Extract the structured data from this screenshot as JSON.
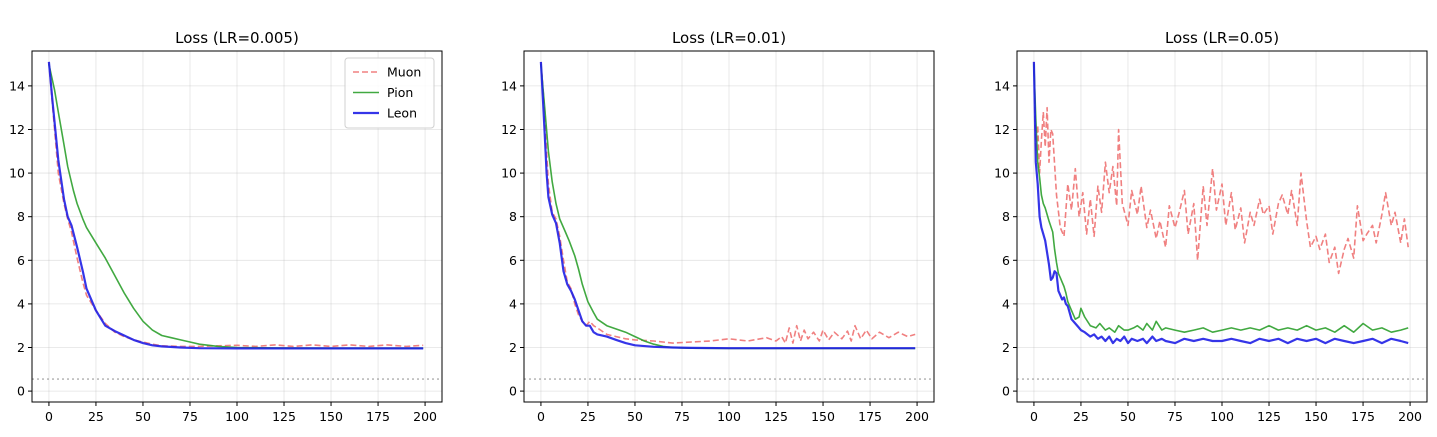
{
  "colors": {
    "muon": "#f08080",
    "pion": "#2ca02c",
    "leon": "#1f1fe6",
    "reference": "#999999"
  },
  "chart_data": [
    {
      "type": "line",
      "title": "Loss (LR=0.005)",
      "xlim": [
        -9,
        209
      ],
      "ylim": [
        -0.5,
        15.6
      ],
      "xticks": [
        0,
        25,
        50,
        75,
        100,
        125,
        150,
        175,
        200
      ],
      "yticks": [
        0,
        2,
        4,
        6,
        8,
        10,
        12,
        14
      ],
      "grid": true,
      "legend": {
        "placement": "top-right",
        "entries": [
          "Muon",
          "Pion",
          "Leon"
        ]
      },
      "reference_line": {
        "y": 0.55,
        "style": "dotted"
      },
      "series": [
        {
          "name": "Muon",
          "style": "dashed",
          "x": [
            0,
            2,
            5,
            8,
            10,
            12,
            15,
            18,
            20,
            25,
            30,
            35,
            40,
            45,
            50,
            55,
            60,
            70,
            80,
            90,
            100,
            110,
            120,
            130,
            140,
            150,
            160,
            170,
            180,
            190,
            199
          ],
          "y": [
            15.1,
            13.0,
            10.0,
            8.6,
            7.9,
            7.3,
            6.1,
            5.0,
            4.4,
            3.7,
            3.1,
            2.7,
            2.5,
            2.35,
            2.25,
            2.15,
            2.08,
            2.05,
            2.05,
            2.08,
            2.1,
            2.05,
            2.12,
            2.05,
            2.12,
            2.05,
            2.12,
            2.05,
            2.12,
            2.05,
            2.1
          ]
        },
        {
          "name": "Pion",
          "style": "solid",
          "x": [
            0,
            3,
            5,
            8,
            10,
            13,
            15,
            18,
            20,
            25,
            30,
            35,
            40,
            45,
            50,
            55,
            60,
            65,
            70,
            75,
            80,
            90,
            100,
            120,
            150,
            199
          ],
          "y": [
            15.0,
            13.8,
            12.8,
            11.3,
            10.3,
            9.2,
            8.6,
            7.9,
            7.5,
            6.8,
            6.1,
            5.3,
            4.5,
            3.8,
            3.2,
            2.8,
            2.55,
            2.45,
            2.35,
            2.25,
            2.15,
            2.05,
            2.0,
            1.98,
            1.97,
            1.97
          ]
        },
        {
          "name": "Leon",
          "style": "solid",
          "x": [
            0,
            2,
            5,
            8,
            10,
            12,
            15,
            18,
            20,
            25,
            30,
            35,
            40,
            45,
            50,
            55,
            60,
            70,
            80,
            100,
            150,
            199
          ],
          "y": [
            15.1,
            13.2,
            10.6,
            8.8,
            8.0,
            7.6,
            6.6,
            5.5,
            4.7,
            3.7,
            3.0,
            2.75,
            2.55,
            2.35,
            2.2,
            2.1,
            2.05,
            2.0,
            1.97,
            1.96,
            1.96,
            1.96
          ]
        }
      ]
    },
    {
      "type": "line",
      "title": "Loss (LR=0.01)",
      "xlim": [
        -9,
        209
      ],
      "ylim": [
        -0.5,
        15.6
      ],
      "xticks": [
        0,
        25,
        50,
        75,
        100,
        125,
        150,
        175,
        200
      ],
      "yticks": [
        0,
        2,
        4,
        6,
        8,
        10,
        12,
        14
      ],
      "grid": true,
      "reference_line": {
        "y": 0.55,
        "style": "dotted"
      },
      "series": [
        {
          "name": "Muon",
          "style": "dashed",
          "x": [
            0,
            1,
            2,
            3,
            4,
            6,
            8,
            10,
            12,
            14,
            16,
            18,
            20,
            22,
            24,
            26,
            28,
            30,
            35,
            40,
            45,
            50,
            60,
            70,
            80,
            90,
            100,
            110,
            120,
            125,
            128,
            130,
            132,
            134,
            136,
            138,
            140,
            142,
            145,
            148,
            150,
            153,
            156,
            160,
            163,
            165,
            167,
            170,
            173,
            176,
            180,
            185,
            190,
            195,
            199
          ],
          "y": [
            15.1,
            14.0,
            12.8,
            11.0,
            9.5,
            8.2,
            7.9,
            7.1,
            6.0,
            5.0,
            4.7,
            4.0,
            3.5,
            3.2,
            3.0,
            3.2,
            3.0,
            2.9,
            2.6,
            2.5,
            2.4,
            2.35,
            2.3,
            2.2,
            2.25,
            2.3,
            2.4,
            2.3,
            2.45,
            2.3,
            2.5,
            2.2,
            2.9,
            2.2,
            3.0,
            2.3,
            2.8,
            2.4,
            2.7,
            2.3,
            2.8,
            2.35,
            2.7,
            2.4,
            2.75,
            2.3,
            3.0,
            2.4,
            2.8,
            2.4,
            2.7,
            2.45,
            2.7,
            2.5,
            2.6
          ]
        },
        {
          "name": "Pion",
          "style": "solid",
          "x": [
            0,
            2,
            4,
            6,
            8,
            10,
            13,
            15,
            18,
            20,
            22,
            25,
            28,
            30,
            35,
            40,
            45,
            50,
            55,
            60,
            65,
            70,
            75,
            80,
            100,
            150,
            199
          ],
          "y": [
            15.0,
            13.0,
            11.0,
            9.6,
            8.6,
            7.9,
            7.3,
            6.9,
            6.2,
            5.6,
            4.9,
            4.1,
            3.6,
            3.3,
            3.0,
            2.85,
            2.7,
            2.5,
            2.3,
            2.15,
            2.05,
            2.0,
            1.98,
            1.97,
            1.96,
            1.96,
            1.96
          ]
        },
        {
          "name": "Leon",
          "style": "solid",
          "x": [
            0,
            1,
            2,
            3,
            4,
            6,
            8,
            10,
            12,
            14,
            16,
            18,
            20,
            22,
            24,
            26,
            28,
            30,
            35,
            40,
            45,
            50,
            60,
            70,
            80,
            100,
            150,
            199
          ],
          "y": [
            15.1,
            13.5,
            11.8,
            10.0,
            8.9,
            8.1,
            7.7,
            6.8,
            5.5,
            4.9,
            4.6,
            4.2,
            3.7,
            3.2,
            3.0,
            3.0,
            2.7,
            2.6,
            2.5,
            2.35,
            2.2,
            2.1,
            2.03,
            2.0,
            1.98,
            1.97,
            1.97,
            1.97
          ]
        }
      ]
    },
    {
      "type": "line",
      "title": "Loss (LR=0.05)",
      "xlim": [
        -9,
        209
      ],
      "ylim": [
        -0.5,
        15.6
      ],
      "xticks": [
        0,
        25,
        50,
        75,
        100,
        125,
        150,
        175,
        200
      ],
      "yticks": [
        0,
        2,
        4,
        6,
        8,
        10,
        12,
        14
      ],
      "grid": true,
      "reference_line": {
        "y": 0.55,
        "style": "dotted"
      },
      "series": [
        {
          "name": "Muon",
          "style": "dashed",
          "x": [
            0,
            1,
            2,
            3,
            4,
            5,
            6,
            7,
            8,
            9,
            10,
            12,
            14,
            16,
            18,
            20,
            22,
            24,
            26,
            28,
            30,
            32,
            34,
            36,
            38,
            40,
            42,
            44,
            45,
            47,
            50,
            52,
            55,
            57,
            60,
            62,
            65,
            67,
            70,
            72,
            75,
            77,
            80,
            82,
            85,
            87,
            90,
            92,
            95,
            97,
            100,
            102,
            105,
            107,
            110,
            112,
            115,
            117,
            120,
            122,
            125,
            127,
            130,
            132,
            135,
            137,
            140,
            142,
            145,
            147,
            150,
            152,
            155,
            157,
            160,
            162,
            165,
            167,
            170,
            172,
            175,
            177,
            180,
            182,
            185,
            187,
            190,
            192,
            195,
            197,
            199
          ],
          "y": [
            15.1,
            11.0,
            12.2,
            10.0,
            11.5,
            12.8,
            11.2,
            13.0,
            10.5,
            12.0,
            11.8,
            9.0,
            7.5,
            7.1,
            9.5,
            8.3,
            10.2,
            8.0,
            9.1,
            7.2,
            8.8,
            7.1,
            9.4,
            8.2,
            10.5,
            9.1,
            10.3,
            8.5,
            12.0,
            8.6,
            7.6,
            9.2,
            8.1,
            9.4,
            7.5,
            8.3,
            7.0,
            7.8,
            6.6,
            8.5,
            7.5,
            8.1,
            9.2,
            7.2,
            8.6,
            6.0,
            9.4,
            7.6,
            10.2,
            8.3,
            9.5,
            7.6,
            9.1,
            7.4,
            8.4,
            6.8,
            8.2,
            7.6,
            8.8,
            8.1,
            8.5,
            7.2,
            8.6,
            9.0,
            8.1,
            9.2,
            7.6,
            10.0,
            7.8,
            6.6,
            7.1,
            6.5,
            7.2,
            5.9,
            6.6,
            5.4,
            6.5,
            7.0,
            6.1,
            8.5,
            6.9,
            7.2,
            7.6,
            6.8,
            8.1,
            9.1,
            7.6,
            8.2,
            6.8,
            7.9,
            6.6
          ]
        },
        {
          "name": "Pion",
          "style": "solid",
          "x": [
            0,
            1,
            2,
            3,
            4,
            5,
            6,
            8,
            10,
            11,
            12,
            13,
            14,
            15,
            16,
            17,
            18,
            20,
            22,
            24,
            25,
            27,
            30,
            33,
            35,
            38,
            40,
            43,
            45,
            48,
            50,
            53,
            55,
            58,
            60,
            63,
            65,
            68,
            70,
            75,
            80,
            85,
            90,
            95,
            100,
            105,
            110,
            115,
            120,
            125,
            130,
            135,
            140,
            145,
            150,
            155,
            160,
            165,
            170,
            175,
            180,
            185,
            190,
            195,
            199
          ],
          "y": [
            15.0,
            12.5,
            10.5,
            9.8,
            9.0,
            8.6,
            8.4,
            7.8,
            7.3,
            6.5,
            5.9,
            5.4,
            5.2,
            5.0,
            4.8,
            4.5,
            4.1,
            3.7,
            3.3,
            3.4,
            3.8,
            3.4,
            3.0,
            2.9,
            3.1,
            2.8,
            2.9,
            2.7,
            3.0,
            2.8,
            2.8,
            2.9,
            3.0,
            2.8,
            3.1,
            2.8,
            3.2,
            2.8,
            2.9,
            2.8,
            2.7,
            2.8,
            2.9,
            2.7,
            2.8,
            2.9,
            2.8,
            2.9,
            2.8,
            3.0,
            2.8,
            2.9,
            2.8,
            3.0,
            2.8,
            2.9,
            2.7,
            3.0,
            2.7,
            3.1,
            2.8,
            2.9,
            2.7,
            2.8,
            2.9
          ]
        },
        {
          "name": "Leon",
          "style": "solid",
          "x": [
            0,
            1,
            2,
            3,
            4,
            5,
            6,
            8,
            9,
            10,
            11,
            12,
            13,
            14,
            15,
            16,
            17,
            18,
            20,
            22,
            24,
            25,
            27,
            30,
            32,
            34,
            36,
            38,
            40,
            42,
            44,
            46,
            48,
            50,
            52,
            55,
            58,
            60,
            63,
            65,
            68,
            70,
            75,
            80,
            85,
            90,
            95,
            100,
            105,
            110,
            115,
            120,
            125,
            130,
            135,
            140,
            145,
            150,
            155,
            160,
            165,
            170,
            175,
            180,
            185,
            190,
            195,
            199
          ],
          "y": [
            15.1,
            10.5,
            9.5,
            8.0,
            7.5,
            7.2,
            6.9,
            5.8,
            5.1,
            5.2,
            5.5,
            5.4,
            4.6,
            4.4,
            4.2,
            4.3,
            4.0,
            3.9,
            3.3,
            3.1,
            2.9,
            2.8,
            2.7,
            2.5,
            2.6,
            2.4,
            2.5,
            2.3,
            2.5,
            2.2,
            2.4,
            2.3,
            2.5,
            2.2,
            2.4,
            2.3,
            2.4,
            2.2,
            2.5,
            2.3,
            2.4,
            2.3,
            2.2,
            2.4,
            2.3,
            2.4,
            2.3,
            2.3,
            2.4,
            2.3,
            2.2,
            2.4,
            2.3,
            2.4,
            2.2,
            2.4,
            2.3,
            2.4,
            2.2,
            2.4,
            2.3,
            2.2,
            2.3,
            2.4,
            2.2,
            2.4,
            2.3,
            2.2
          ]
        }
      ]
    }
  ]
}
